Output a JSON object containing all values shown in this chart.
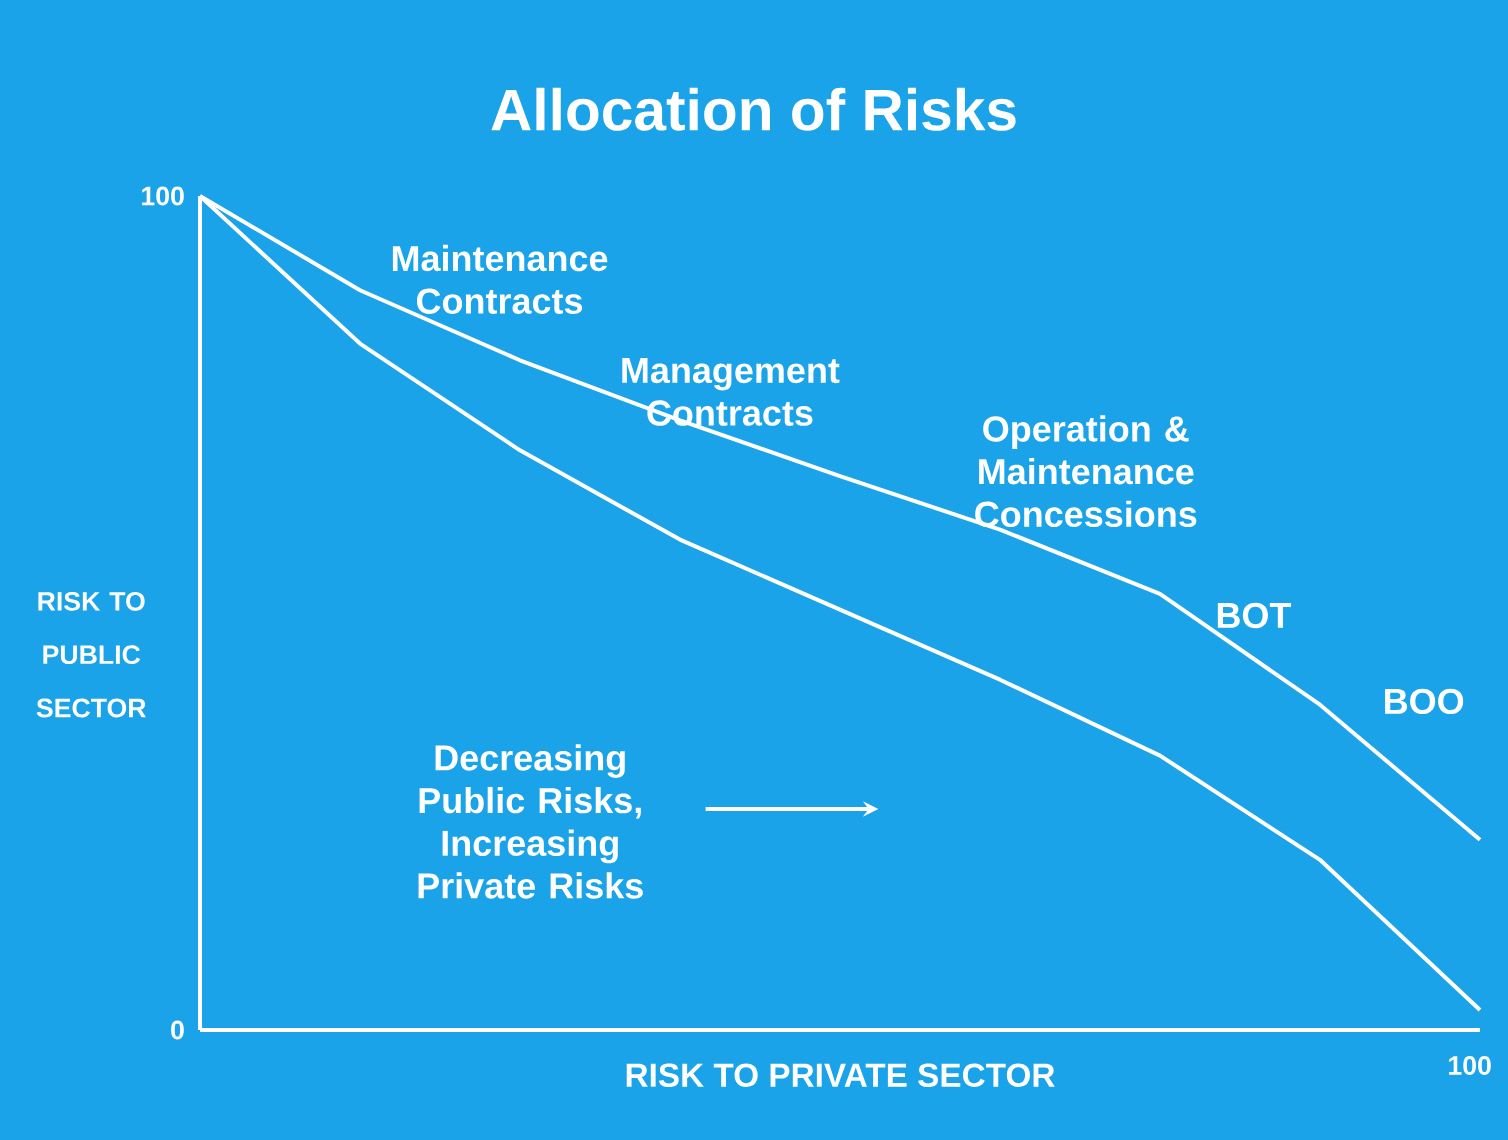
{
  "chart_data": {
    "type": "line",
    "title": "Allocation of Risks",
    "xlabel": "RISK TO PRIVATE SECTOR",
    "ylabel": "RISK TO PUBLIC SECTOR",
    "categories": [
      null,
      null,
      null,
      null,
      null,
      null,
      null,
      null,
      null
    ],
    "ylim": [
      0,
      100
    ],
    "yticks": [
      0,
      100
    ],
    "grid": false,
    "marker": "none",
    "line_style": "solid",
    "series": [
      {
        "color": "#ffffff",
        "values": [
          100,
          88.7,
          80.3,
          73.1,
          66.4,
          60,
          52.3,
          39,
          22.8
        ]
      },
      {
        "color": "#ffffff",
        "values": [
          100,
          82.3,
          69.5,
          58.8,
          50.4,
          42,
          32.9,
          20.4,
          2.4
        ]
      }
    ],
    "annotations": [
      "Maintenance Contracts",
      "Management Contracts",
      "Operation & Maintenance Concessions",
      "BOT",
      "BOO",
      "Decreasing Public Risks, Increasing Private Risks",
      "100"
    ]
  }
}
